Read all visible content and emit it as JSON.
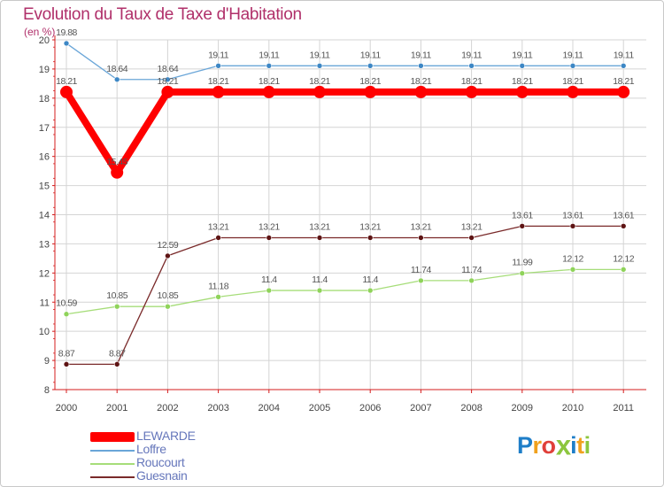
{
  "colors": {
    "title": "#b0306a",
    "axis": "#d41c1c",
    "grid": "#d4d4d4",
    "legend_text": "#6677bb"
  },
  "header": {
    "title": "Evolution du Taux de Taxe d'Habitation",
    "unit": "(en %)"
  },
  "brand": {
    "letters": [
      {
        "ch": "P",
        "color": "#1e7ec8"
      },
      {
        "ch": "r",
        "color": "#f0a11e"
      },
      {
        "ch": "o",
        "color": "#e0403a"
      },
      {
        "ch": "x",
        "color": "#8cc63e"
      },
      {
        "ch": "i",
        "color": "#1e7ec8"
      },
      {
        "ch": "t",
        "color": "#f0a11e"
      },
      {
        "ch": "i",
        "color": "#8cc63e"
      }
    ]
  },
  "chart_data": {
    "type": "line",
    "title": "Evolution du Taux de Taxe d'Habitation",
    "ylabel": "(en %)",
    "xlabel": "",
    "x": [
      "2000",
      "2001",
      "2002",
      "2003",
      "2004",
      "2005",
      "2006",
      "2007",
      "2008",
      "2009",
      "2010",
      "2011"
    ],
    "ylim": [
      8,
      20
    ],
    "yticks": [
      "8",
      "9",
      "10",
      "11",
      "12",
      "13",
      "14",
      "15",
      "16",
      "17",
      "18",
      "19",
      "20"
    ],
    "grid": true,
    "legend_position": "bottom-left",
    "series": [
      {
        "name": "LEWARDE",
        "color": "#ff0000",
        "emphasis": "thick",
        "values": [
          18.21,
          15.45,
          18.21,
          18.21,
          18.21,
          18.21,
          18.21,
          18.21,
          18.21,
          18.21,
          18.21,
          18.21
        ],
        "labels": [
          "18.21",
          "15.45",
          "18.21",
          "18.21",
          "18.21",
          "18.21",
          "18.21",
          "18.21",
          "18.21",
          "18.21",
          "18.21",
          "18.21"
        ]
      },
      {
        "name": "Loffre",
        "color": "#6aa6d8",
        "marker_color": "#3d87c5",
        "emphasis": "thin",
        "values": [
          19.88,
          18.64,
          18.64,
          19.11,
          19.11,
          19.11,
          19.11,
          19.11,
          19.11,
          19.11,
          19.11,
          19.11
        ],
        "labels": [
          "19.88",
          "18.64",
          "18.64",
          "19.11",
          "19.11",
          "19.11",
          "19.11",
          "19.11",
          "19.11",
          "19.11",
          "19.11",
          "19.11"
        ]
      },
      {
        "name": "Roucourt",
        "color": "#a6dd79",
        "marker_color": "#8fd35a",
        "emphasis": "thin",
        "values": [
          10.59,
          10.85,
          10.85,
          11.18,
          11.4,
          11.4,
          11.4,
          11.74,
          11.74,
          11.99,
          12.12,
          12.12
        ],
        "labels": [
          "10.59",
          "10.85",
          "10.85",
          "11.18",
          "11.4",
          "11.4",
          "11.4",
          "11.74",
          "11.74",
          "11.99",
          "12.12",
          "12.12"
        ]
      },
      {
        "name": "Guesnain",
        "color": "#7a2a2a",
        "marker_color": "#5e1414",
        "emphasis": "thin",
        "values": [
          8.87,
          8.87,
          12.59,
          13.21,
          13.21,
          13.21,
          13.21,
          13.21,
          13.21,
          13.61,
          13.61,
          13.61
        ],
        "labels": [
          "8.87",
          "8.87",
          "12.59",
          "13.21",
          "13.21",
          "13.21",
          "13.21",
          "13.21",
          "13.21",
          "13.61",
          "13.61",
          "13.61"
        ]
      }
    ]
  }
}
